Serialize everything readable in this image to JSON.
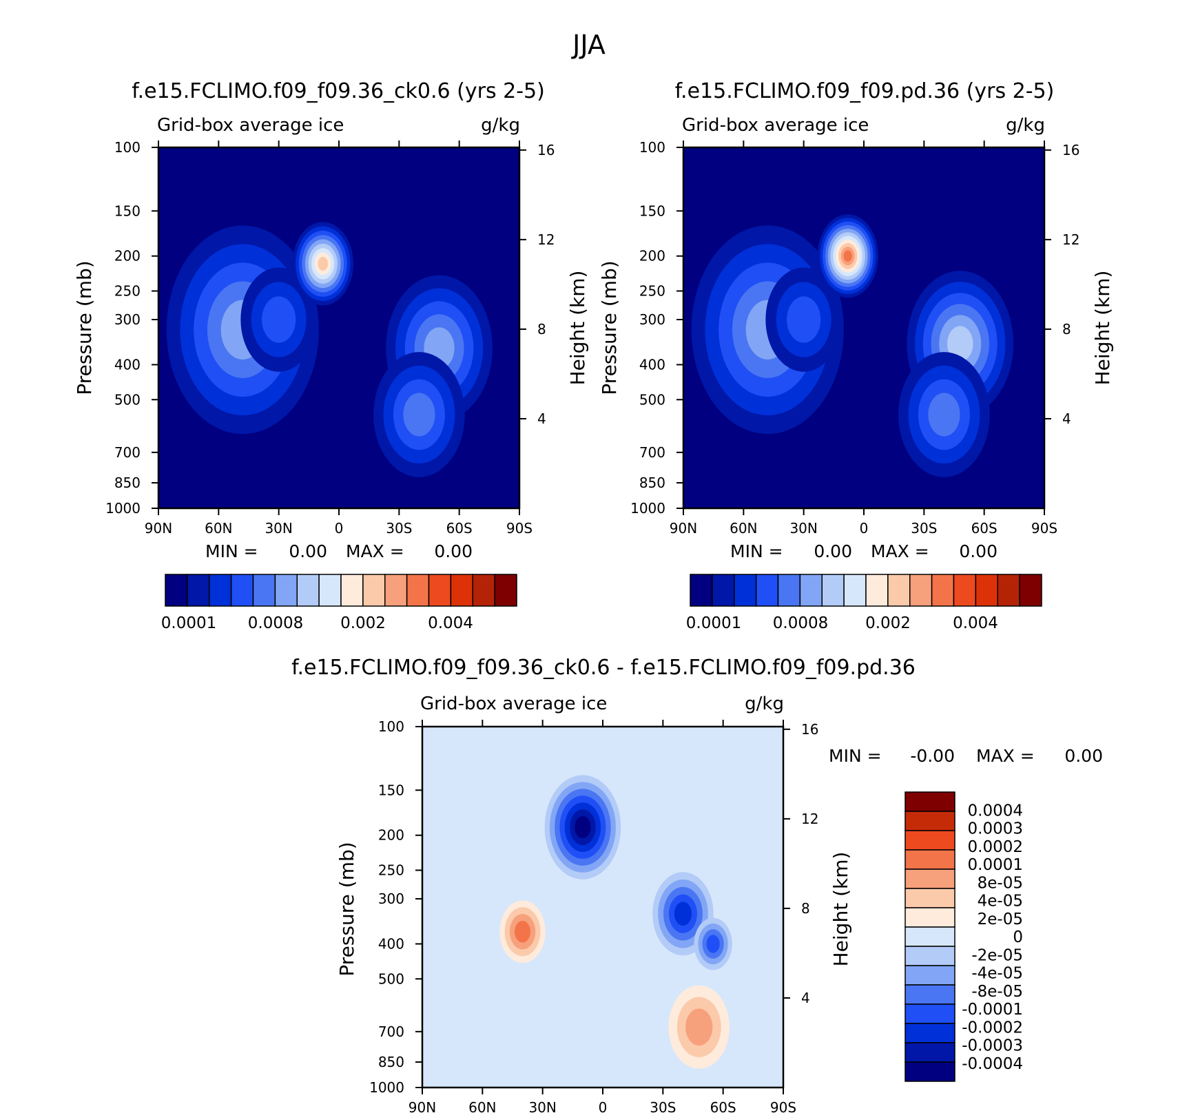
{
  "page": {
    "title": "JJA"
  },
  "colors": {
    "abs_scale": [
      "#000080",
      "#0017a8",
      "#0030d8",
      "#1f4ff5",
      "#4a76f3",
      "#82a6f5",
      "#b3cbf7",
      "#d6e7fb",
      "#feebdc",
      "#fbcaab",
      "#f7a07c",
      "#f4744a",
      "#ed4a1f",
      "#dd3208",
      "#b42306",
      "#7e0000"
    ],
    "diff_scale": [
      "#000080",
      "#0017a8",
      "#0030d8",
      "#1f4ff5",
      "#4a76f3",
      "#82a6f5",
      "#b3cbf7",
      "#d6e7fb",
      "#feebdc",
      "#fbcaab",
      "#f7a07c",
      "#f4744a",
      "#ed4a1f",
      "#c62b08",
      "#7e0000"
    ]
  },
  "panels": [
    {
      "key": "p1",
      "title": "f.e15.FCLIMO.f09_f09.36_ck0.6 (yrs 2-5)",
      "left_label": "Grid-box average ice",
      "right_label": "g/kg",
      "stats": {
        "min_label": "MIN =",
        "min_value": "0.00",
        "max_label": "MAX =",
        "max_value": "0.00"
      },
      "colorbar_labels": [
        "0.0001",
        "0.0008",
        "0.002",
        "0.004"
      ]
    },
    {
      "key": "p2",
      "title": "f.e15.FCLIMO.f09_f09.pd.36 (yrs 2-5)",
      "left_label": "Grid-box average ice",
      "right_label": "g/kg",
      "stats": {
        "min_label": "MIN =",
        "min_value": "0.00",
        "max_label": "MAX =",
        "max_value": "0.00"
      },
      "colorbar_labels": [
        "0.0001",
        "0.0008",
        "0.002",
        "0.004"
      ]
    },
    {
      "key": "p3",
      "title": "f.e15.FCLIMO.f09_f09.36_ck0.6 - f.e15.FCLIMO.f09_f09.pd.36",
      "left_label": "Grid-box average ice",
      "right_label": "g/kg",
      "stats": {
        "min_label": "MIN =",
        "min_value": "-0.00",
        "max_label": "MAX =",
        "max_value": "0.00"
      },
      "colorbar_labels": [
        "0.0004",
        "0.0003",
        "0.0002",
        "0.0001",
        "8e-05",
        "4e-05",
        "2e-05",
        "0",
        "-2e-05",
        "-4e-05",
        "-8e-05",
        "-0.0001",
        "-0.0002",
        "-0.0003",
        "-0.0004"
      ]
    }
  ],
  "chart_data": [
    {
      "type": "heatmap",
      "title": "f.e15.FCLIMO.f09_f09.36_ck0.6 (yrs 2-5)",
      "xlabel": "",
      "ylabel": "Pressure (mb)",
      "y2label": "Height (km)",
      "x_ticks": [
        "90N",
        "60N",
        "30N",
        "0",
        "30S",
        "60S",
        "90S"
      ],
      "y_ticks": [
        100,
        150,
        200,
        250,
        300,
        400,
        500,
        700,
        850,
        1000
      ],
      "y2_ticks": [
        16,
        12,
        8,
        4
      ],
      "ylim": [
        1000,
        100
      ],
      "xlim": [
        90,
        -90
      ],
      "colorbar_ticks": [
        "0.0001",
        "0.0008",
        "0.002",
        "0.004"
      ],
      "blobs": [
        {
          "lat": 48,
          "p": 320,
          "r": 20,
          "v": 5
        },
        {
          "lat": 30,
          "p": 300,
          "r": 10,
          "v": 3
        },
        {
          "lat": 8,
          "p": 210,
          "r": 8,
          "v": 9
        },
        {
          "lat": -50,
          "p": 360,
          "r": 14,
          "v": 5
        },
        {
          "lat": -40,
          "p": 550,
          "r": 12,
          "v": 4
        }
      ]
    },
    {
      "type": "heatmap",
      "title": "f.e15.FCLIMO.f09_f09.pd.36 (yrs 2-5)",
      "xlabel": "",
      "ylabel": "Pressure (mb)",
      "y2label": "Height (km)",
      "x_ticks": [
        "90N",
        "60N",
        "30N",
        "0",
        "30S",
        "60S",
        "90S"
      ],
      "y_ticks": [
        100,
        150,
        200,
        250,
        300,
        400,
        500,
        700,
        850,
        1000
      ],
      "y2_ticks": [
        16,
        12,
        8,
        4
      ],
      "ylim": [
        1000,
        100
      ],
      "xlim": [
        90,
        -90
      ],
      "colorbar_ticks": [
        "0.0001",
        "0.0008",
        "0.002",
        "0.004"
      ],
      "blobs": [
        {
          "lat": 48,
          "p": 320,
          "r": 20,
          "v": 5
        },
        {
          "lat": 30,
          "p": 300,
          "r": 10,
          "v": 3
        },
        {
          "lat": 8,
          "p": 200,
          "r": 8,
          "v": 11
        },
        {
          "lat": -48,
          "p": 350,
          "r": 14,
          "v": 6
        },
        {
          "lat": -40,
          "p": 550,
          "r": 12,
          "v": 4
        }
      ]
    },
    {
      "type": "heatmap",
      "title": "f.e15.FCLIMO.f09_f09.36_ck0.6 - f.e15.FCLIMO.f09_f09.pd.36",
      "xlabel": "",
      "ylabel": "Pressure (mb)",
      "y2label": "Height (km)",
      "x_ticks": [
        "90N",
        "60N",
        "30N",
        "0",
        "30S",
        "60S",
        "90S"
      ],
      "y_ticks": [
        100,
        150,
        200,
        250,
        300,
        400,
        500,
        700,
        850,
        1000
      ],
      "y2_ticks": [
        16,
        12,
        8,
        4
      ],
      "ylim": [
        1000,
        100
      ],
      "xlim": [
        90,
        -90
      ],
      "colorbar_ticks": [
        "0.0004",
        "0.0003",
        "0.0002",
        "0.0001",
        "8e-05",
        "4e-05",
        "2e-05",
        "0",
        "-2e-05",
        "-4e-05",
        "-8e-05",
        "-0.0001",
        "-0.0002",
        "-0.0003",
        "-0.0004"
      ],
      "blobs": [
        {
          "lat": 10,
          "p": 190,
          "r": 10,
          "v": 0
        },
        {
          "lat": -40,
          "p": 330,
          "r": 8,
          "v": 2
        },
        {
          "lat": -55,
          "p": 400,
          "r": 5,
          "v": 3
        },
        {
          "lat": 40,
          "p": 370,
          "r": 6,
          "v": 11
        },
        {
          "lat": -48,
          "p": 680,
          "r": 8,
          "v": 10
        }
      ]
    }
  ]
}
